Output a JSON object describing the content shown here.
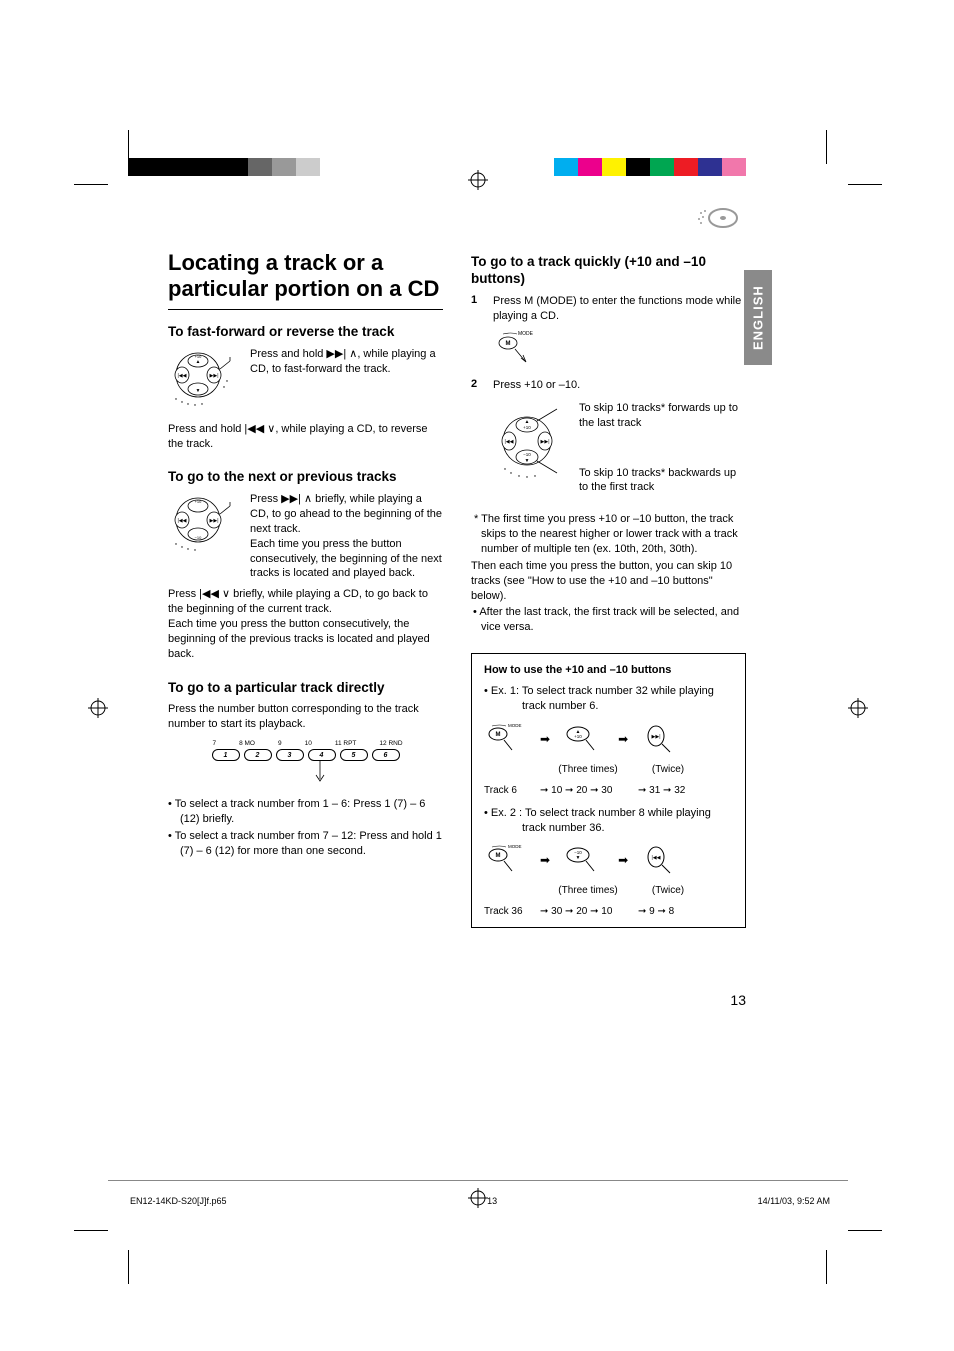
{
  "document": {
    "page_number": "13",
    "language_tab": "ENGLISH",
    "footer_file": "EN12-14KD-S20[J]f.p65",
    "footer_page": "13",
    "footer_date": "14/11/03, 9:52 AM"
  },
  "colorbars": {
    "left": [
      "#000000",
      "#000000",
      "#000000",
      "#000000",
      "#000000",
      "#666666",
      "#999999",
      "#cccccc",
      "#ffffff"
    ],
    "right": [
      "#ffffff",
      "#00aeef",
      "#ec008c",
      "#fff200",
      "#000000",
      "#00a651",
      "#ed1c24",
      "#2e3192",
      "#f177ab"
    ]
  },
  "title": "Locating a track or a particular portion on a CD",
  "left_col": {
    "sec1": {
      "heading": "To fast-forward or reverse the track",
      "para1": "Press and hold ▶▶| ∧, while playing a CD, to fast-forward the track.",
      "para2": "Press and hold |◀◀ ∨, while playing a CD, to reverse the track."
    },
    "sec2": {
      "heading": "To go to the next or previous tracks",
      "para1": "Press ▶▶| ∧ briefly, while playing a CD, to go ahead to the beginning of the next track.",
      "para1b": "Each time you press the button consecutively, the beginning of the next tracks is located and played back.",
      "para2": "Press |◀◀ ∨ briefly, while playing a CD, to go back to the beginning of the current track.",
      "para2b": "Each time you press the button consecutively, the beginning of the previous tracks is located and played back."
    },
    "sec3": {
      "heading": "To go to a particular track directly",
      "intro": "Press the number button corresponding to the track number to start its playback.",
      "btn_top_labels": [
        "7",
        "8  MO",
        "9",
        "10",
        "11  RPT",
        "12  RND"
      ],
      "btn_nums": [
        "1",
        "2",
        "3",
        "4",
        "5",
        "6"
      ],
      "bullets": [
        "To select a track number from 1 – 6: Press 1 (7) – 6 (12) briefly.",
        "To select a track number from 7 – 12: Press and hold 1 (7) – 6 (12) for more than one second."
      ]
    }
  },
  "right_col": {
    "sec4": {
      "heading": "To go to a track quickly (+10 and –10 buttons)",
      "step1_num": "1",
      "step1": "Press M (MODE) to enter the functions mode while playing a CD.",
      "step2_num": "2",
      "step2": "Press +10 or –10.",
      "annot_up": "To skip 10 tracks* forwards up to the last track",
      "annot_down": "To skip 10 tracks* backwards up to the first track",
      "note_star": "* The first time you press +10 or –10 button, the track skips to the nearest higher or lower track with a track number of multiple ten (ex. 10th, 20th, 30th).",
      "note_then": "Then each time you press the button, you can skip 10 tracks (see \"How to use the +10 and –10 buttons\" below).",
      "note_after": "After the last track, the first track will be selected, and vice versa."
    },
    "box": {
      "title": "How to use the +10 and –10 buttons",
      "ex1_intro": "• Ex. 1: To select track number 32 while playing track number 6.",
      "ex1_label1": "(Three times)",
      "ex1_label2": "(Twice)",
      "ex1_track": "Track 6",
      "ex1_seq1": "➞ 10 ➞ 20 ➞ 30",
      "ex1_seq2": "➞ 31 ➞ 32",
      "ex2_intro": "• Ex. 2 : To select track number 8 while playing track number 36.",
      "ex2_label1": "(Three times)",
      "ex2_label2": "(Twice)",
      "ex2_track": "Track 36",
      "ex2_seq1": "➞ 30 ➞ 20 ➞ 10",
      "ex2_seq2": "➞ 9 ➞ 8"
    }
  },
  "icons": {
    "mode_label": "MODE",
    "plus10": "+10",
    "minus10": "−10"
  }
}
